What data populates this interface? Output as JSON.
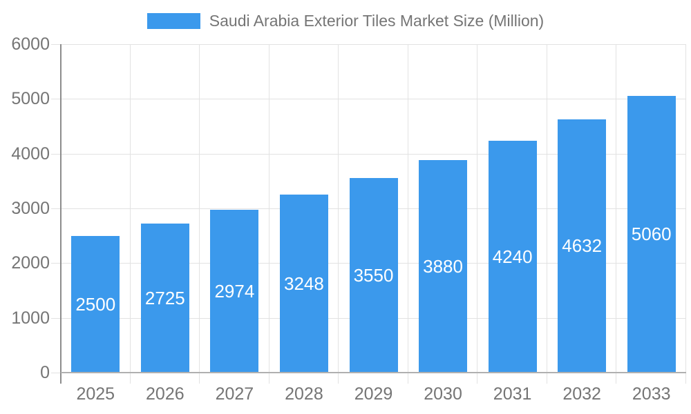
{
  "chart_data": {
    "type": "bar",
    "title": "Saudi Arabia Exterior Tiles Market Size (Million)",
    "categories": [
      "2025",
      "2026",
      "2027",
      "2028",
      "2029",
      "2030",
      "2031",
      "2032",
      "2033"
    ],
    "values": [
      2500,
      2725,
      2974,
      3248,
      3550,
      3880,
      4240,
      4632,
      5060
    ],
    "xlabel": "",
    "ylabel": "",
    "ylim": [
      0,
      6000
    ],
    "ytick_step": 1000,
    "ytick_labels": [
      "0",
      "1000",
      "2000",
      "3000",
      "4000",
      "5000",
      "6000"
    ],
    "grid": true,
    "legend_position": "top",
    "colors": {
      "bar": "#3B99EC",
      "bar_label": "#FFFFFF",
      "axis_text": "#757575",
      "grid_line": "#E2E2E2",
      "x_axis_line": "#B0B0B0",
      "y_axis_line": "#8C8C8C",
      "background": "#FFFFFF"
    }
  }
}
